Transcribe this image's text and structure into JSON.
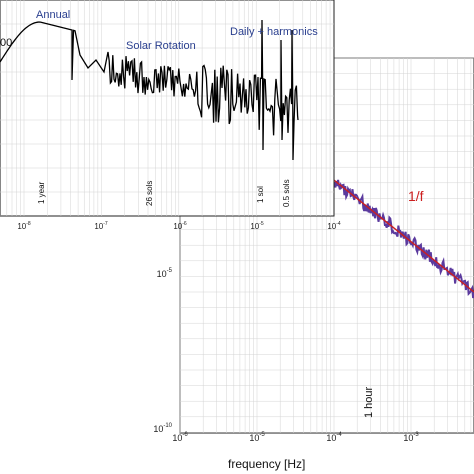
{
  "figure": {
    "xlabel": "frequency [Hz]",
    "inset_ylabel_fragment": "00",
    "inset_xticks": [
      "10^-8",
      "10^-7",
      "10^-6",
      "10^-5",
      "10^-4"
    ],
    "main_xticks": [
      "10^-6",
      "10^-5",
      "10^-4",
      "10^-3"
    ],
    "main_yticks": [
      "10^-5",
      "10^-10"
    ]
  },
  "annotations": {
    "annual": "Annual",
    "solar_rotation": "Solar Rotation",
    "daily": "Daily + harmonics",
    "one_over_f": "1/f",
    "one_year": "1 year",
    "sols26": "26 sols",
    "one_sol": "1 sol",
    "half_sol": "0.5 sols",
    "one_hour": "1 hour"
  },
  "colors": {
    "inset_series": "#000000",
    "main_series": "#5b3a9e",
    "fit_line": "#cc1f1f",
    "annotation_text": "#2a3f8f",
    "grid": "#d4d4d4"
  },
  "chart_data": [
    {
      "type": "line",
      "panel": "inset (long-period spectrum)",
      "xscale": "log",
      "xlim": [
        1e-09,
        0.0004
      ],
      "x": [
        1e-09,
        3e-09,
        1e-08,
        2e-08,
        3e-08,
        4e-08,
        6e-08,
        1e-07,
        2e-07,
        4e-07,
        1e-06,
        3e-06,
        1e-05,
        3e-05
      ],
      "y": [
        0.18,
        0.55,
        0.95,
        0.7,
        0.12,
        0.4,
        0.22,
        0.3,
        0.12,
        0.25,
        0.1,
        0.18,
        0.15,
        0.12
      ],
      "features": [
        "Annual",
        "Solar Rotation",
        "Daily + harmonics",
        "1 year",
        "26 sols",
        "1 sol",
        "0.5 sols"
      ]
    },
    {
      "type": "line",
      "panel": "main (high-frequency spectrum)",
      "xscale": "log",
      "yscale": "log",
      "xlim": [
        1e-06,
        0.01
      ],
      "x": [
        1e-06,
        3e-06,
        1e-05,
        3e-05,
        0.0001,
        0.0002,
        0.0005,
        0.001,
        0.002,
        0.005
      ],
      "y": [
        0.01,
        0.005,
        0.002,
        0.0008,
        0.0001,
        4e-05,
        1e-05,
        4e-06,
        2e-06,
        7e-07
      ],
      "fit": {
        "name": "1/f",
        "x": [
          1e-06,
          0.005
        ],
        "y": [
          0.01,
          2e-06
        ]
      },
      "features": [
        "1/f",
        "1 hour"
      ]
    }
  ]
}
